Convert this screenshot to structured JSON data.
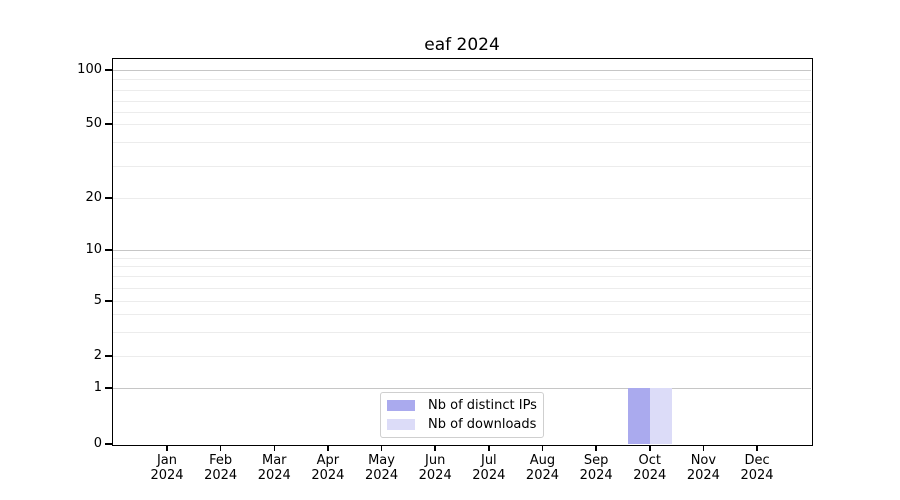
{
  "title": "eaf 2024",
  "colors": {
    "distinct_ips": "#aaaaee",
    "downloads": "#dcdcf8",
    "grid_major": "#c6c6c6",
    "grid_minor": "#ececec",
    "axis": "#000000",
    "legend_border": "#cfcfcf",
    "text": "#000000",
    "background": "#ffffff"
  },
  "legend": {
    "items": [
      {
        "label": "Nb of distinct IPs"
      },
      {
        "label": "Nb of downloads"
      }
    ]
  },
  "chart_data": {
    "type": "bar",
    "title": "eaf 2024",
    "categories": [
      "Jan 2024",
      "Feb 2024",
      "Mar 2024",
      "Apr 2024",
      "May 2024",
      "Jun 2024",
      "Jul 2024",
      "Aug 2024",
      "Sep 2024",
      "Oct 2024",
      "Nov 2024",
      "Dec 2024"
    ],
    "series": [
      {
        "name": "Nb of distinct IPs",
        "color": "#aaaaee",
        "values": [
          0,
          0,
          0,
          0,
          0,
          0,
          0,
          0,
          0,
          1,
          0,
          0
        ]
      },
      {
        "name": "Nb of downloads",
        "color": "#dcdcf8",
        "values": [
          0,
          0,
          0,
          0,
          0,
          0,
          0,
          0,
          0,
          1,
          0,
          0
        ]
      }
    ],
    "xlabel": "",
    "ylabel": "",
    "yscale": "log-like",
    "yticks": [
      0,
      1,
      2,
      5,
      10,
      20,
      50,
      100
    ],
    "decade_gridlines": [
      1,
      10,
      100
    ],
    "minor_gridlines": [
      3,
      4,
      6,
      7,
      8,
      9,
      30,
      40,
      60,
      70,
      80,
      90
    ],
    "ylim": [
      0,
      130
    ],
    "grid": true,
    "legend_position": "inside-bottom-center"
  }
}
